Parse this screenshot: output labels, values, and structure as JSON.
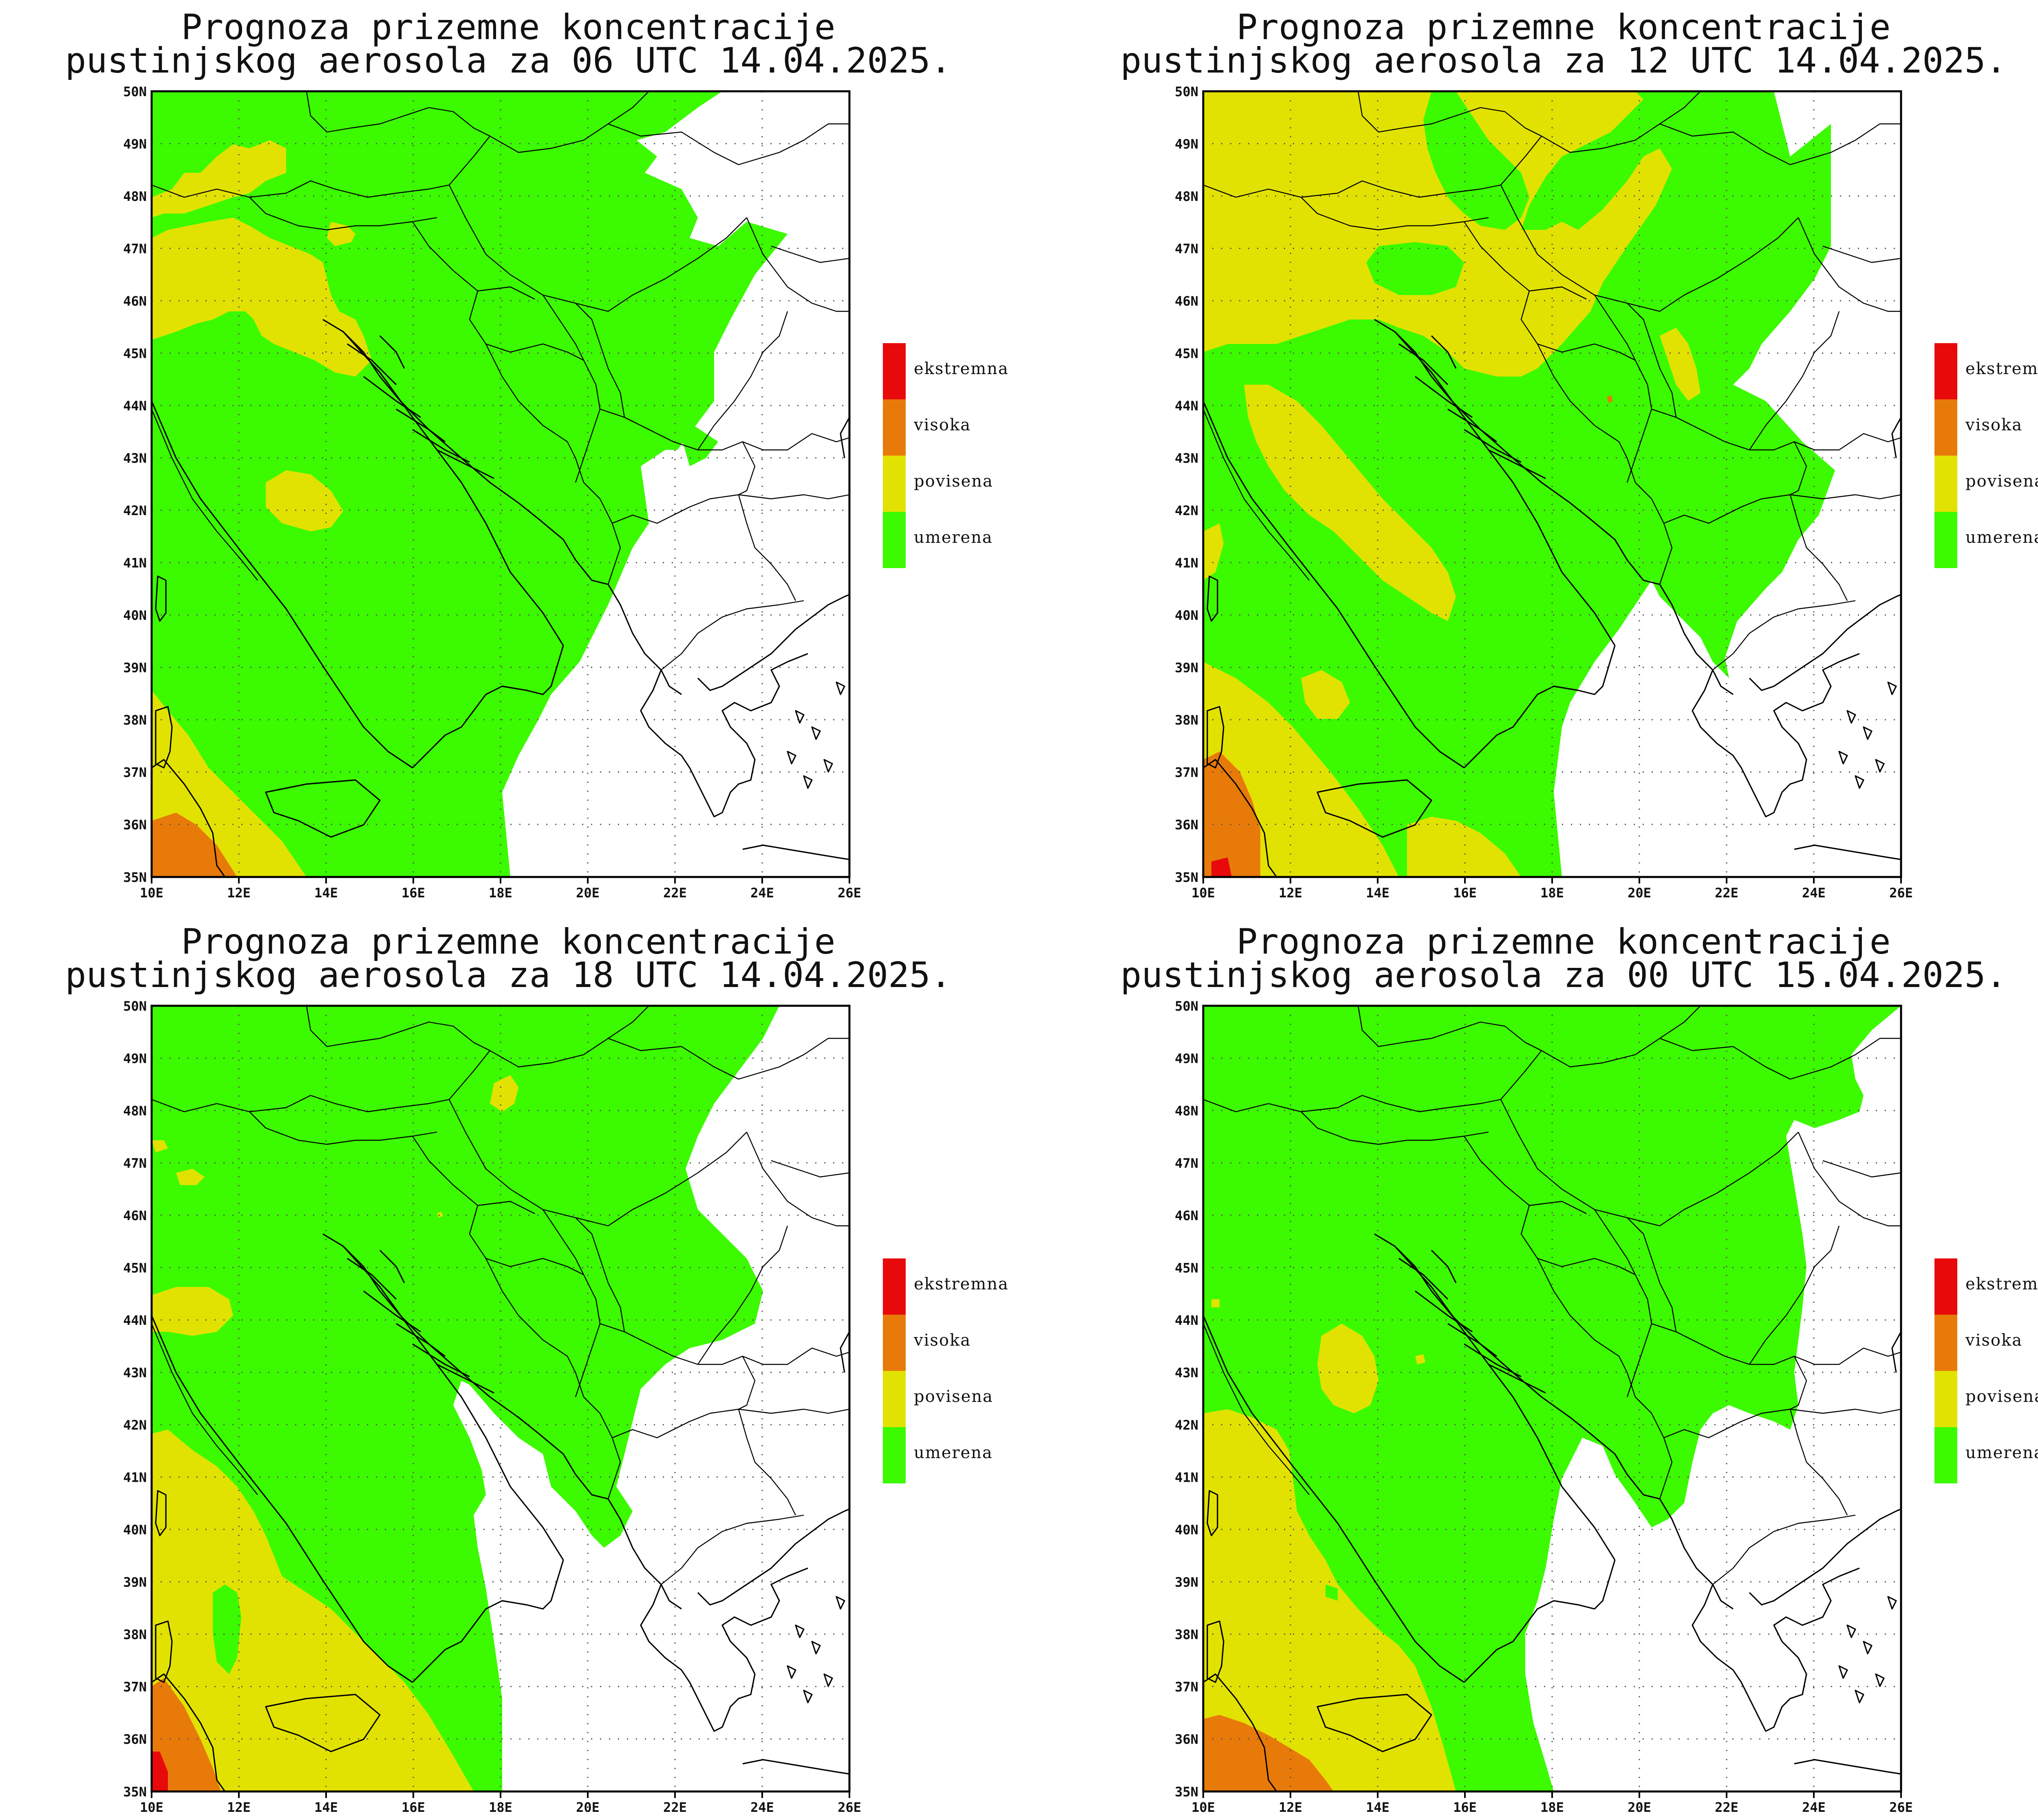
{
  "panels": [
    {
      "title_line1": "Prognoza prizemne koncentracije",
      "title_line2": "pustinjskog aerosola za 06 UTC 14.04.2025."
    },
    {
      "title_line1": "Prognoza prizemne koncentracije",
      "title_line2": "pustinjskog aerosola za 12 UTC 14.04.2025."
    },
    {
      "title_line1": "Prognoza prizemne koncentracije",
      "title_line2": "pustinjskog aerosola za 18 UTC 14.04.2025."
    },
    {
      "title_line1": "Prognoza prizemne koncentracije",
      "title_line2": "pustinjskog aerosola za 00 UTC 15.04.2025."
    }
  ],
  "axes": {
    "lon_labels": [
      "10E",
      "12E",
      "14E",
      "16E",
      "18E",
      "20E",
      "22E",
      "24E",
      "26E"
    ],
    "lat_labels": [
      "50N",
      "49N",
      "48N",
      "47N",
      "46N",
      "45N",
      "44N",
      "43N",
      "42N",
      "41N",
      "40N",
      "39N",
      "38N",
      "37N",
      "36N",
      "35N"
    ]
  },
  "legend": [
    {
      "label": "ekstremna",
      "color": "#e80a0a"
    },
    {
      "label": "visoka",
      "color": "#e87a0a"
    },
    {
      "label": "povisena",
      "color": "#e2e202"
    },
    {
      "label": "umerena",
      "color": "#3cfa00"
    }
  ]
}
